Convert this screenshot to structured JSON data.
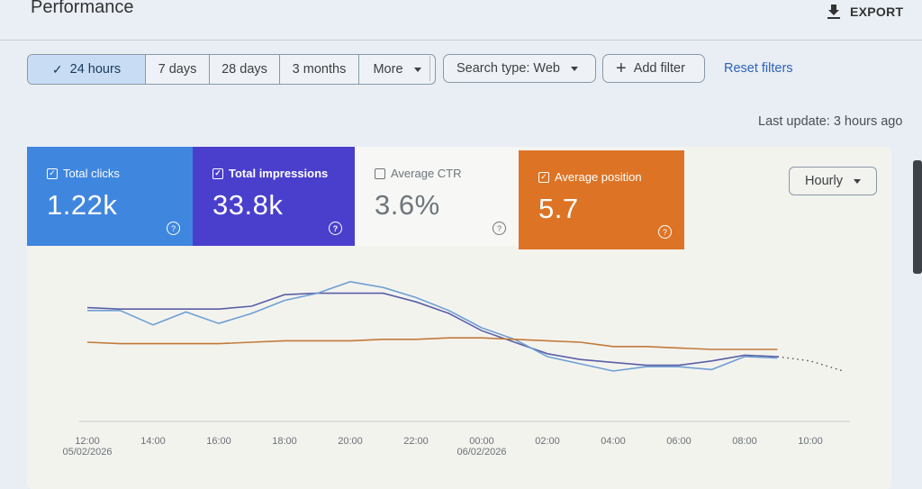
{
  "header": {
    "title": "Performance",
    "export_label": "EXPORT"
  },
  "toolbar": {
    "ranges": [
      "24 hours",
      "7 days",
      "28 days",
      "3 months",
      "More"
    ],
    "active_range": "24 hours",
    "search_type": "Search type: Web",
    "add_filter": "Add filter",
    "reset_filters": "Reset filters"
  },
  "last_update": "Last update: 3 hours ago",
  "metrics": {
    "clicks": {
      "label": "Total clicks",
      "value": "1.22k",
      "checked": true,
      "color": "#3f86df"
    },
    "impressions": {
      "label": "Total impressions",
      "value": "33.8k",
      "checked": true,
      "color": "#4a3fcc"
    },
    "ctr": {
      "label": "Average CTR",
      "value": "3.6%",
      "checked": false
    },
    "position": {
      "label": "Average position",
      "value": "5.7",
      "checked": true,
      "color": "#dd7425"
    }
  },
  "granularity": "Hourly",
  "chart_data": {
    "type": "line",
    "x": [
      "12:00",
      "13:00",
      "14:00",
      "15:00",
      "16:00",
      "17:00",
      "18:00",
      "19:00",
      "20:00",
      "21:00",
      "22:00",
      "23:00",
      "00:00",
      "01:00",
      "02:00",
      "03:00",
      "04:00",
      "05:00",
      "06:00",
      "07:00",
      "08:00",
      "09:00",
      "10:00"
    ],
    "x_tick_labels": [
      "12:00",
      "14:00",
      "16:00",
      "18:00",
      "20:00",
      "22:00",
      "00:00",
      "02:00",
      "04:00",
      "06:00",
      "08:00",
      "10:00"
    ],
    "date_labels": {
      "12:00": "05/02/2026",
      "00:00": "06/02/2026"
    },
    "series": [
      {
        "color": "#5a5fa6",
        "values": [
          74,
          73,
          73,
          73,
          73,
          75,
          83,
          84,
          84,
          84,
          78,
          70,
          58,
          50,
          42,
          38,
          36,
          34,
          34,
          37,
          41,
          40,
          null
        ]
      },
      {
        "color": "#6f9fd4",
        "values": [
          72,
          72,
          62,
          71,
          63,
          70,
          79,
          84,
          92,
          88,
          81,
          72,
          60,
          52,
          40,
          35,
          30,
          33,
          33,
          31,
          40,
          39,
          null
        ]
      },
      {
        "color": "#c27a3b",
        "values": [
          50,
          49,
          49,
          49,
          49,
          50,
          51,
          51,
          51,
          52,
          52,
          53,
          53,
          52,
          51,
          50,
          47,
          47,
          46,
          45,
          45,
          45,
          null
        ]
      }
    ],
    "projected": {
      "color": "#4a4f55",
      "values": [
        40,
        37,
        30
      ]
    }
  }
}
